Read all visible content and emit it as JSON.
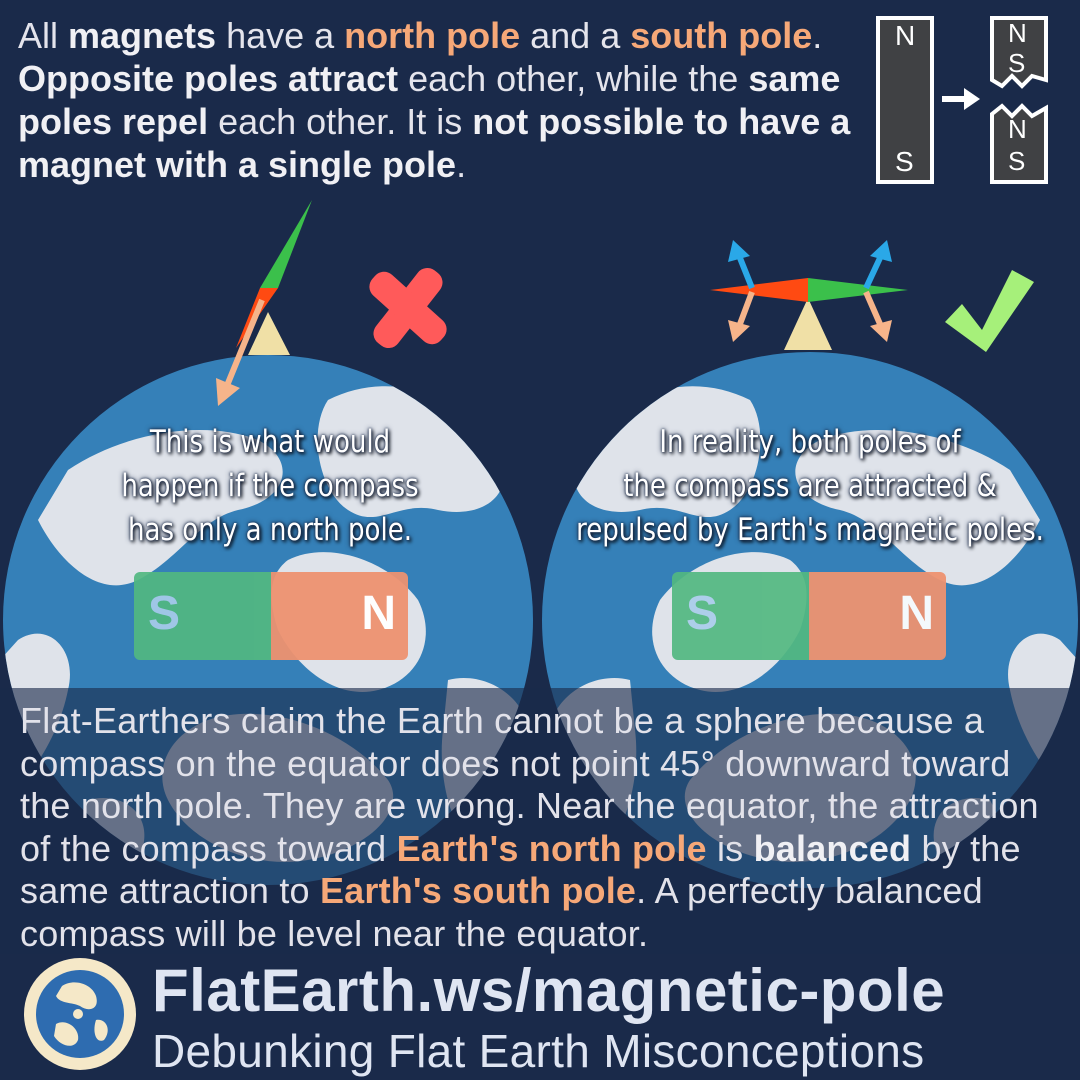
{
  "intro": {
    "p1": "All ",
    "magnets": "magnets",
    "p2": " have a ",
    "north_pole": "north pole",
    "p3": " and a ",
    "south_pole": "south pole",
    "p4": ". ",
    "opposite": "Opposite poles attract",
    "p5": " each other, while the ",
    "same": "same poles repel",
    "p6": " each other. It is ",
    "not_possible": "not possible to have a magnet with a single pole",
    "p7": "."
  },
  "bar_magnet": {
    "whole_top": "N",
    "whole_bottom": "S",
    "half1_top": "N",
    "half1_bottom": "S",
    "half2_top": "N",
    "half2_bottom": "S"
  },
  "left_globe": {
    "caption_line1": "This is what would",
    "caption_line2": "happen if the compass",
    "caption_line3": "has only a north pole.",
    "magnet_s": "S",
    "magnet_n": "N",
    "mark": "cross-icon"
  },
  "right_globe": {
    "caption_line1": "In reality, both poles of",
    "caption_line2": "the compass are attracted &",
    "caption_line3": "repulsed by Earth's magnetic poles.",
    "magnet_s": "S",
    "magnet_n": "N",
    "mark": "check-icon"
  },
  "body": {
    "t1": "Flat-Earthers claim the Earth cannot be a sphere because a compass on the equator does not point 45° downward toward the north pole. They are wrong. Near the equator, the attraction of the compass toward ",
    "earth_north": "Earth's north pole",
    "t2": " is ",
    "balanced": "balanced",
    "t3": " by the same attraction to ",
    "earth_south": "Earth's south pole",
    "t4": ". A perfectly balanced compass will be level near the equator."
  },
  "footer": {
    "title": "FlatEarth.ws/magnetic-pole",
    "subtitle": "Debunking Flat Earth Misconceptions",
    "logo": "globe-logo-icon"
  },
  "colors": {
    "background": "#1a2a4a",
    "accent_orange": "#f6a878",
    "ocean": "#3580b8",
    "land": "#dfe3ea",
    "magnet_south": "#52b880",
    "magnet_north": "#ee9270",
    "needle_north_green": "#3bc04b",
    "needle_south_red": "#ff4a12",
    "cross": "#ff5a5a",
    "check": "#a6f07a",
    "arrow_blue": "#2aa8e8",
    "arrow_peach": "#f6b48a"
  }
}
